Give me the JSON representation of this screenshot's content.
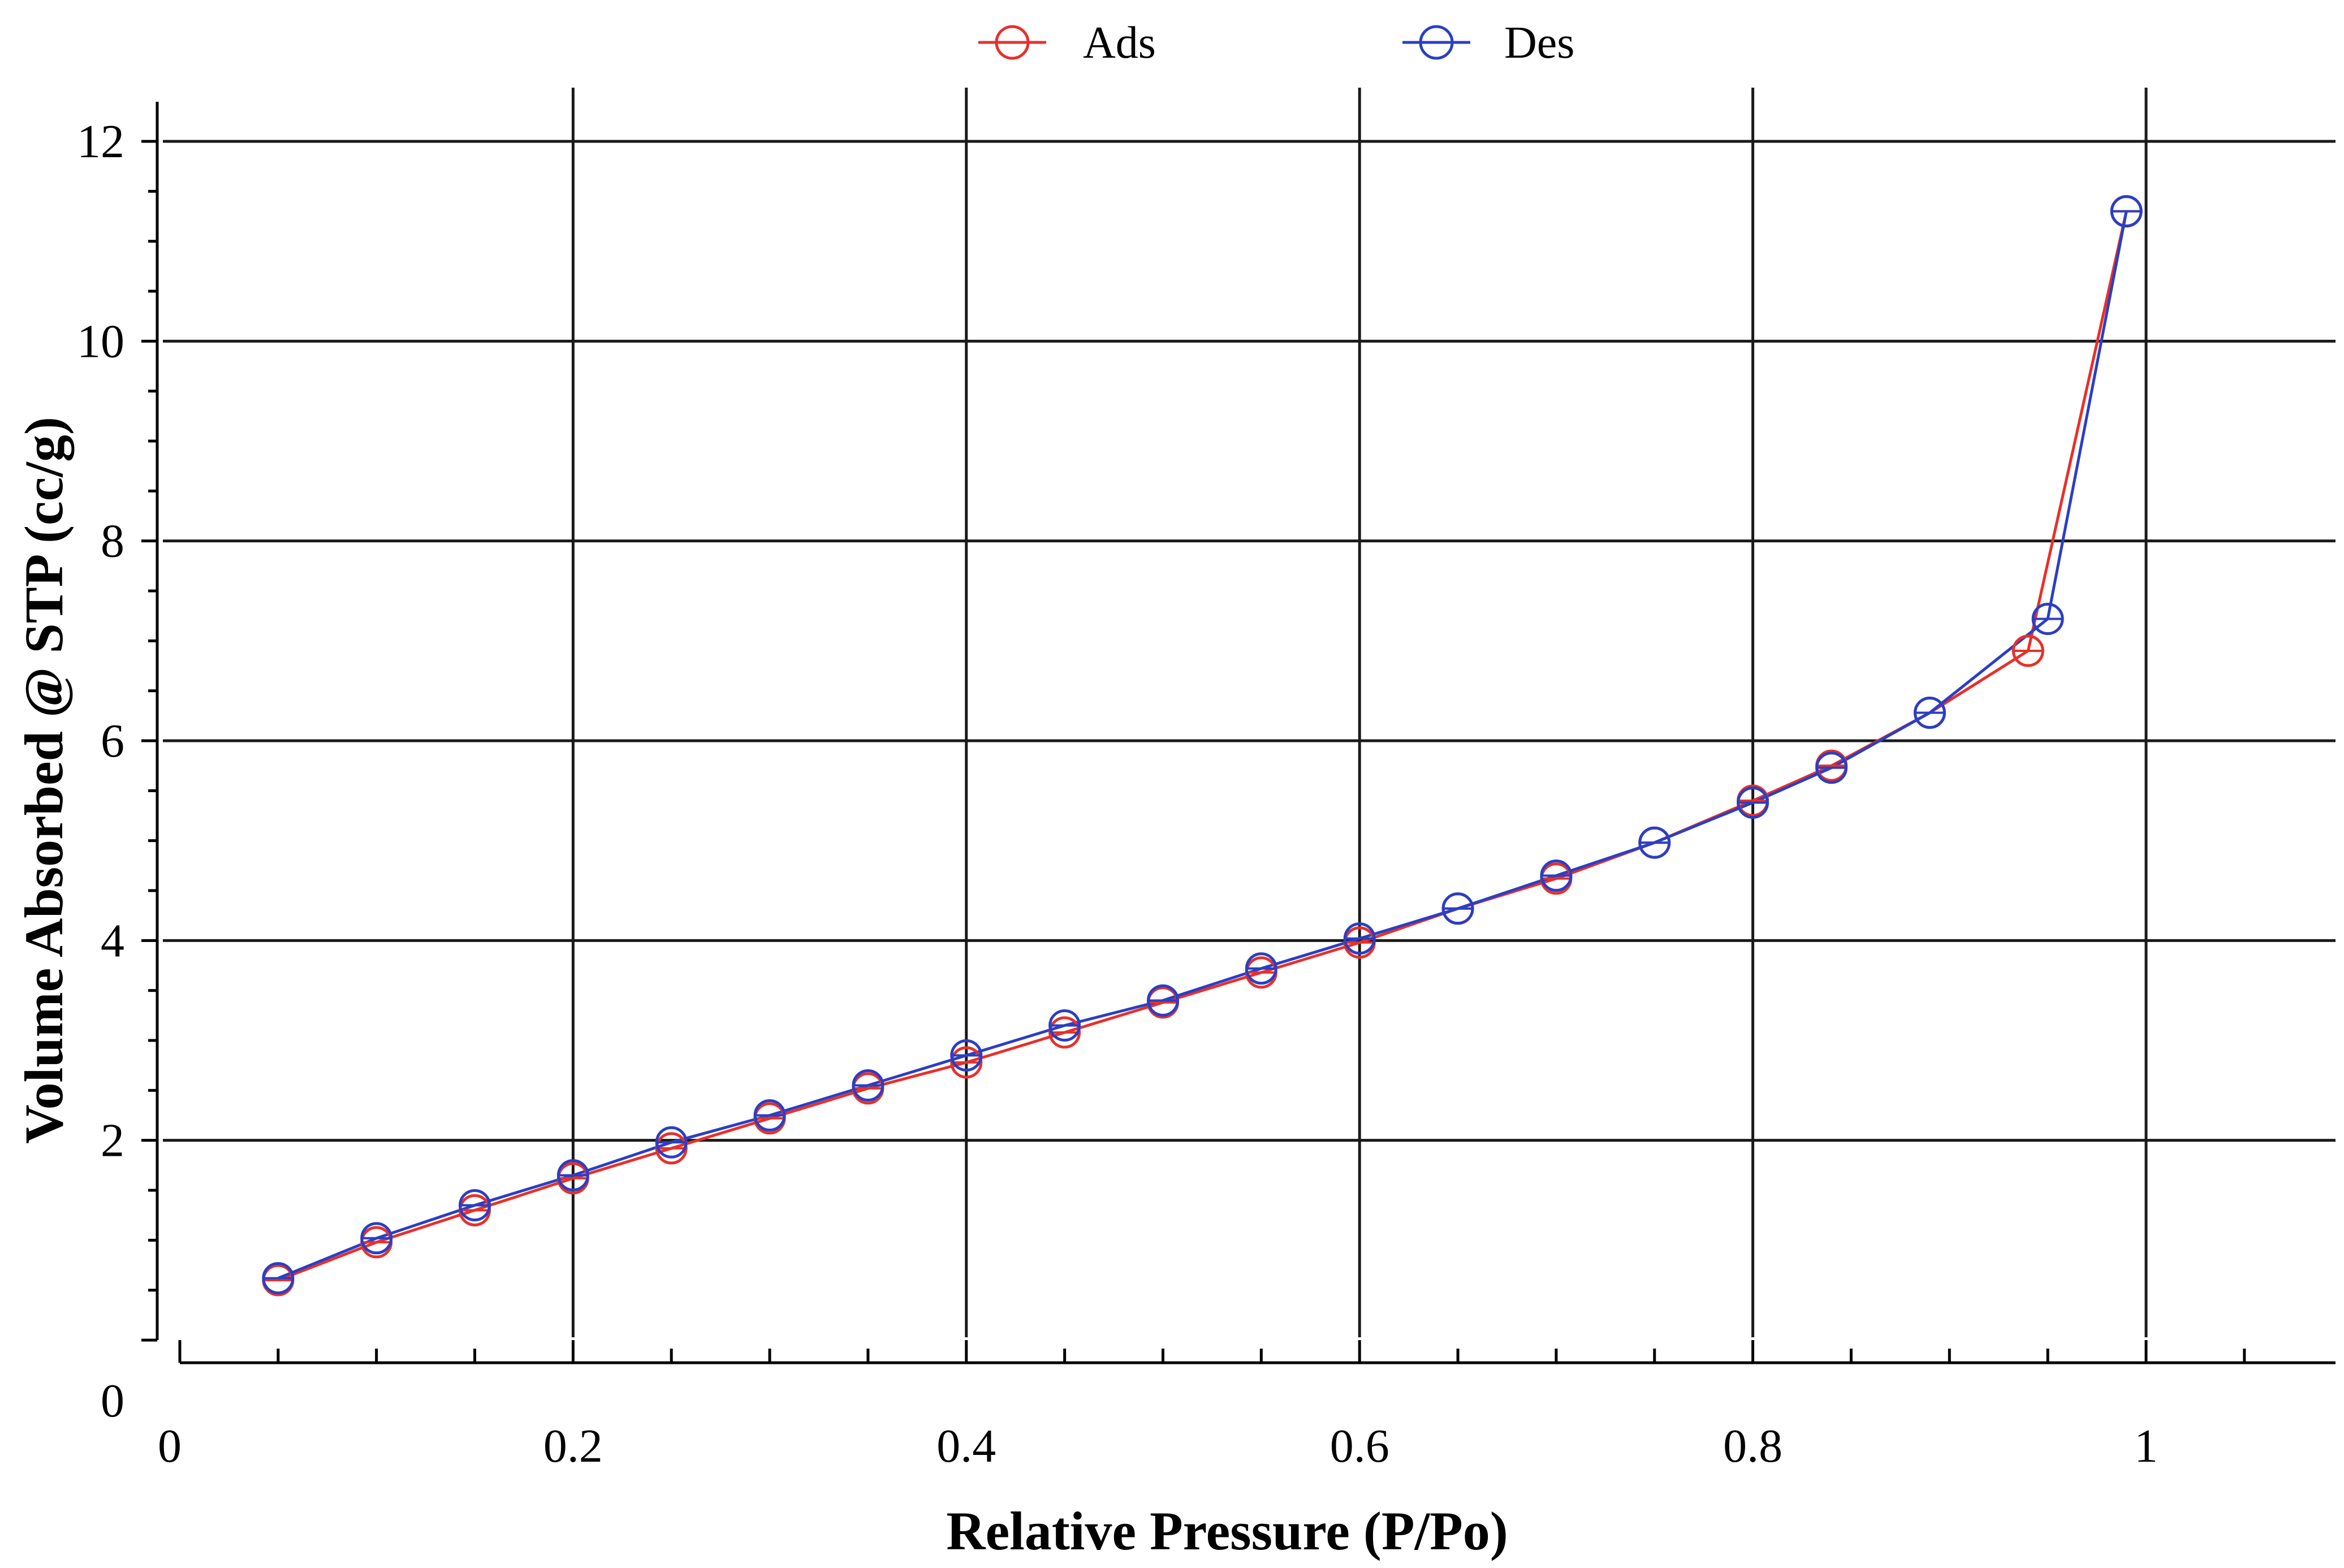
{
  "chart_data": {
    "type": "line",
    "title": "",
    "xlabel": "Relative Pressure (P/Po)",
    "ylabel": "Volume Absorbed @ STP (cc/g)",
    "xlim": [
      0,
      1.1
    ],
    "ylim": [
      0,
      12.5
    ],
    "x_ticks": [
      0,
      0.2,
      0.4,
      0.6,
      0.8,
      1
    ],
    "x_tick_labels": [
      "0",
      "0.2",
      "0.4",
      "0.6",
      "0.8",
      "1"
    ],
    "y_ticks": [
      0,
      2,
      4,
      6,
      8,
      10,
      12
    ],
    "y_tick_labels": [
      "0",
      "2",
      "4",
      "6",
      "8",
      "10",
      "12"
    ],
    "grid": true,
    "legend_position": "top-center",
    "series": [
      {
        "name": "Ads",
        "color": "#e8302a",
        "marker": "open-circle",
        "x": [
          0.05,
          0.1,
          0.15,
          0.2,
          0.25,
          0.3,
          0.35,
          0.4,
          0.45,
          0.5,
          0.55,
          0.6,
          0.65,
          0.7,
          0.75,
          0.8,
          0.84,
          0.89,
          0.94,
          0.99
        ],
        "y": [
          0.6,
          0.98,
          1.3,
          1.62,
          1.92,
          2.22,
          2.52,
          2.78,
          3.08,
          3.38,
          3.68,
          3.98,
          4.32,
          4.62,
          4.98,
          5.4,
          5.75,
          6.28,
          6.9,
          11.3
        ]
      },
      {
        "name": "Des",
        "color": "#2a3fc4",
        "marker": "open-circle",
        "x": [
          0.05,
          0.1,
          0.15,
          0.2,
          0.25,
          0.3,
          0.35,
          0.4,
          0.45,
          0.5,
          0.55,
          0.6,
          0.65,
          0.7,
          0.75,
          0.8,
          0.84,
          0.89,
          0.95,
          0.99
        ],
        "y": [
          0.62,
          1.02,
          1.35,
          1.65,
          1.98,
          2.25,
          2.55,
          2.85,
          3.15,
          3.4,
          3.72,
          4.02,
          4.32,
          4.65,
          4.98,
          5.38,
          5.73,
          6.28,
          7.22,
          11.3
        ]
      }
    ],
    "line_color": "#7a2fb0"
  }
}
